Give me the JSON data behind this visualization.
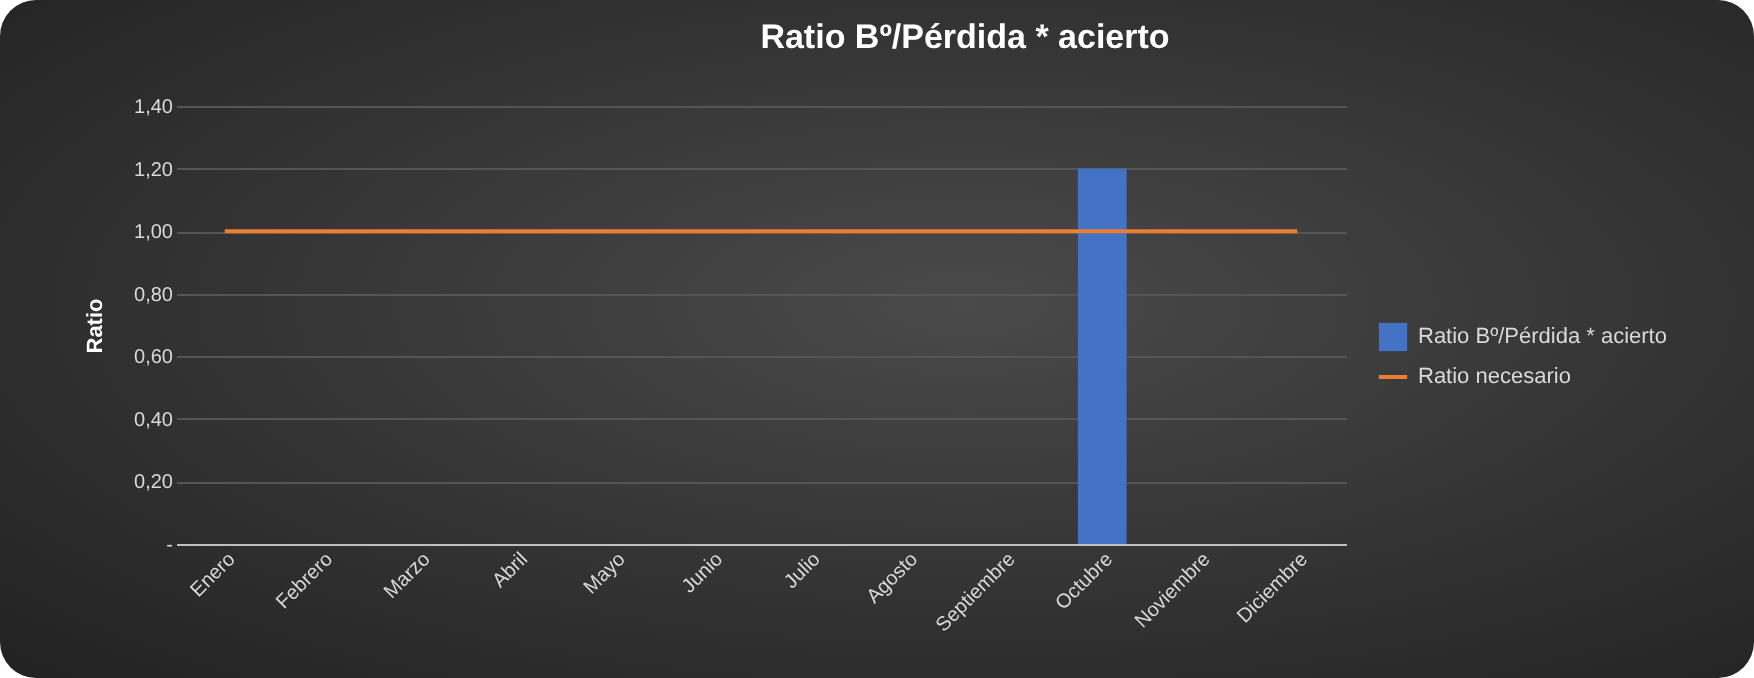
{
  "chart_data": {
    "type": "bar",
    "title": "Ratio Bº/Pérdida * acierto",
    "ylabel": "Ratio",
    "categories": [
      "Enero",
      "Febrero",
      "Marzo",
      "Abril",
      "Mayo",
      "Junio",
      "Julio",
      "Agosto",
      "Septiembre",
      "Octubre",
      "Noviembre",
      "Diciembre"
    ],
    "series": [
      {
        "name": "Ratio Bº/Pérdida * acierto",
        "color": "#4472c4",
        "values": [
          null,
          null,
          null,
          null,
          null,
          null,
          null,
          null,
          null,
          1.2,
          null,
          null
        ]
      },
      {
        "name": "Ratio necesario",
        "type": "line",
        "color": "#ed7d31",
        "values": [
          1,
          1,
          1,
          1,
          1,
          1,
          1,
          1,
          1,
          1,
          1,
          1
        ]
      }
    ],
    "ylim": [
      0,
      1.4
    ],
    "yticks": [
      {
        "value": 0,
        "label": "-"
      },
      {
        "value": 0.2,
        "label": "0,20"
      },
      {
        "value": 0.4,
        "label": "0,40"
      },
      {
        "value": 0.6,
        "label": "0,60"
      },
      {
        "value": 0.8,
        "label": "0,80"
      },
      {
        "value": 1,
        "label": "1,00"
      },
      {
        "value": 1.2,
        "label": "1,20"
      },
      {
        "value": 1.4,
        "label": "1,40"
      }
    ],
    "grid": "y",
    "legend": "right"
  }
}
